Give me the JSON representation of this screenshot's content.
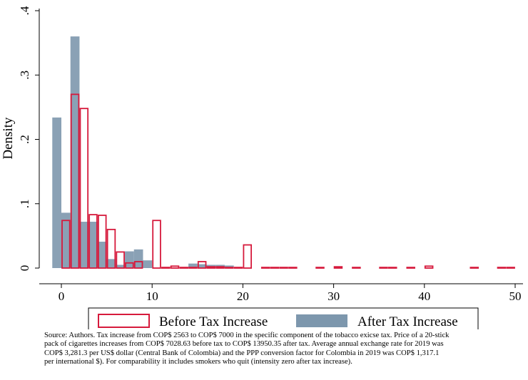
{
  "chart_data": {
    "type": "bar",
    "subtype": "overlaid-histogram",
    "title": "",
    "xlabel": "",
    "ylabel": "Density",
    "xlim": [
      -1.5,
      51
    ],
    "ylim": [
      0,
      0.4
    ],
    "xticks": [
      0,
      10,
      20,
      30,
      40,
      50
    ],
    "xtick_labels": [
      "0",
      "10",
      "20",
      "30",
      "40",
      "50"
    ],
    "yticks": [
      0,
      0.1,
      0.2,
      0.3,
      0.4
    ],
    "ytick_labels": [
      "0",
      ".1",
      ".2",
      ".3",
      ".4"
    ],
    "grid": false,
    "legend_position": "bottom",
    "series": [
      {
        "name": "After Tax Increase",
        "style": "filled",
        "color": "#7d97ad",
        "bins": [
          {
            "x0": -1.0,
            "x1": 0.0,
            "value": 0.234
          },
          {
            "x0": 0.0,
            "x1": 1.0,
            "value": 0.086
          },
          {
            "x0": 1.0,
            "x1": 2.0,
            "value": 0.36
          },
          {
            "x0": 2.0,
            "x1": 3.0,
            "value": 0.072
          },
          {
            "x0": 3.0,
            "x1": 4.0,
            "value": 0.072
          },
          {
            "x0": 4.0,
            "x1": 5.0,
            "value": 0.041
          },
          {
            "x0": 5.0,
            "x1": 6.0,
            "value": 0.014
          },
          {
            "x0": 6.0,
            "x1": 7.0,
            "value": 0.005
          },
          {
            "x0": 7.0,
            "x1": 8.0,
            "value": 0.026
          },
          {
            "x0": 8.0,
            "x1": 9.0,
            "value": 0.029
          },
          {
            "x0": 9.0,
            "x1": 10.0,
            "value": 0.012
          },
          {
            "x0": 14.0,
            "x1": 15.0,
            "value": 0.007
          },
          {
            "x0": 15.0,
            "x1": 16.0,
            "value": 0.006
          },
          {
            "x0": 16.0,
            "x1": 17.0,
            "value": 0.005
          },
          {
            "x0": 17.0,
            "x1": 18.0,
            "value": 0.005
          },
          {
            "x0": 18.0,
            "x1": 19.0,
            "value": 0.004
          }
        ]
      },
      {
        "name": "Before Tax Increase",
        "style": "outline",
        "color": "#d61a3c",
        "bins": [
          {
            "x0": 0.0,
            "x1": 1.0,
            "value": 0.074
          },
          {
            "x0": 1.0,
            "x1": 2.0,
            "value": 0.27
          },
          {
            "x0": 2.0,
            "x1": 3.0,
            "value": 0.248
          },
          {
            "x0": 3.0,
            "x1": 4.0,
            "value": 0.083
          },
          {
            "x0": 4.0,
            "x1": 5.0,
            "value": 0.082
          },
          {
            "x0": 5.0,
            "x1": 6.0,
            "value": 0.06
          },
          {
            "x0": 6.0,
            "x1": 7.0,
            "value": 0.025
          },
          {
            "x0": 7.0,
            "x1": 8.0,
            "value": 0.008
          },
          {
            "x0": 8.0,
            "x1": 9.0,
            "value": 0.01
          },
          {
            "x0": 10.0,
            "x1": 11.0,
            "value": 0.074
          },
          {
            "x0": 11.0,
            "x1": 12.0,
            "value": 0.001
          },
          {
            "x0": 12.0,
            "x1": 13.0,
            "value": 0.003
          },
          {
            "x0": 13.0,
            "x1": 14.0,
            "value": 0.001
          },
          {
            "x0": 14.0,
            "x1": 15.0,
            "value": 0.001
          },
          {
            "x0": 15.0,
            "x1": 16.0,
            "value": 0.01
          },
          {
            "x0": 16.0,
            "x1": 17.0,
            "value": 0.002
          },
          {
            "x0": 17.0,
            "x1": 18.0,
            "value": 0.002
          },
          {
            "x0": 18.0,
            "x1": 19.0,
            "value": 0.001
          },
          {
            "x0": 19.0,
            "x1": 20.0,
            "value": 0.001
          },
          {
            "x0": 20.0,
            "x1": 21.0,
            "value": 0.036
          },
          {
            "x0": 22.0,
            "x1": 23.0,
            "value": 0.001
          },
          {
            "x0": 23.0,
            "x1": 24.0,
            "value": 0.001
          },
          {
            "x0": 24.0,
            "x1": 25.0,
            "value": 0.001
          },
          {
            "x0": 25.0,
            "x1": 26.0,
            "value": 0.001
          },
          {
            "x0": 28.0,
            "x1": 29.0,
            "value": 0.001
          },
          {
            "x0": 30.0,
            "x1": 31.0,
            "value": 0.002
          },
          {
            "x0": 32.0,
            "x1": 33.0,
            "value": 0.001
          },
          {
            "x0": 35.0,
            "x1": 36.0,
            "value": 0.001
          },
          {
            "x0": 36.0,
            "x1": 37.0,
            "value": 0.001
          },
          {
            "x0": 38.0,
            "x1": 39.0,
            "value": 0.001
          },
          {
            "x0": 40.0,
            "x1": 41.0,
            "value": 0.003
          },
          {
            "x0": 45.0,
            "x1": 46.0,
            "value": 0.001
          },
          {
            "x0": 48.0,
            "x1": 49.0,
            "value": 0.001
          },
          {
            "x0": 49.0,
            "x1": 50.0,
            "value": 0.001
          }
        ]
      }
    ]
  },
  "legend": {
    "before_label": "Before Tax Increase",
    "after_label": "After Tax Increase"
  },
  "note": {
    "text": "Source: Authors. Tax increase from COP$ 2563 to COP$ 7000 in the specific component of the tobacco exicse tax. Price of a 20-stick\npack of cigarettes increases from COP$ 7028.63 before tax to COP$ 13950.35 after tax. Average annual exchange rate for 2019 was\nCOP$ 3,281.3 per US$ dollar (Central Bank of Colombia) and the PPP conversion factor for Colombia in 2019 was COP$ 1,317.1\n per international $). For comparability it includes smokers who quit (intensity zero after tax increase)."
  }
}
